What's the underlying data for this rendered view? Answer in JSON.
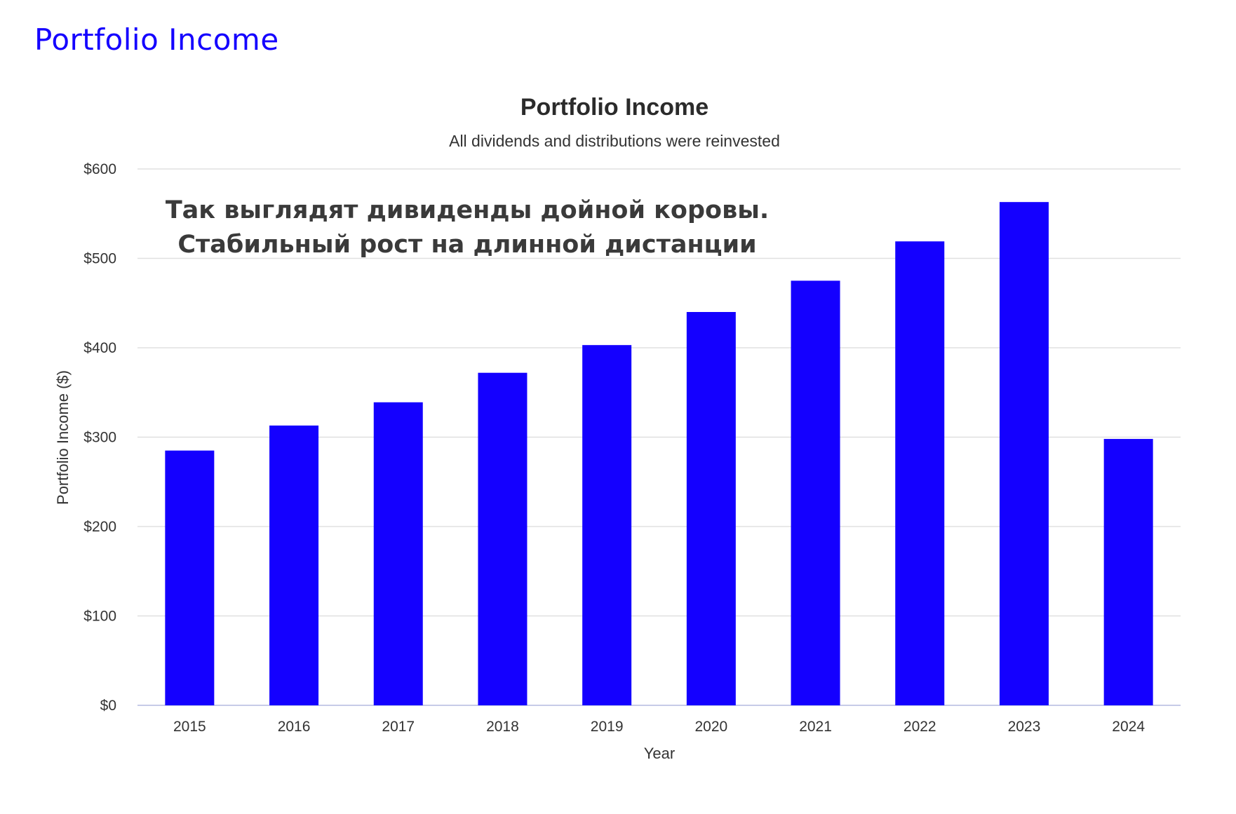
{
  "page": {
    "heading": "Portfolio Income"
  },
  "chart_data": {
    "type": "bar",
    "title": "Portfolio Income",
    "subtitle": "All dividends and distributions were reinvested",
    "xlabel": "Year",
    "ylabel": "Portfolio Income ($)",
    "categories": [
      "2015",
      "2016",
      "2017",
      "2018",
      "2019",
      "2020",
      "2021",
      "2022",
      "2023",
      "2024"
    ],
    "values": [
      285,
      313,
      339,
      372,
      403,
      440,
      475,
      519,
      563,
      298
    ],
    "ylim": [
      0,
      600
    ],
    "yticks": [
      0,
      100,
      200,
      300,
      400,
      500,
      600
    ],
    "ytick_labels": [
      "$0",
      "$100",
      "$200",
      "$300",
      "$400",
      "$500",
      "$600"
    ],
    "grid": true,
    "bar_color": "#1400ff",
    "annotation": {
      "lines": [
        "Так выглядят дивиденды дойной коровы.",
        "Стабильный рост на длинной дистанции"
      ]
    }
  }
}
